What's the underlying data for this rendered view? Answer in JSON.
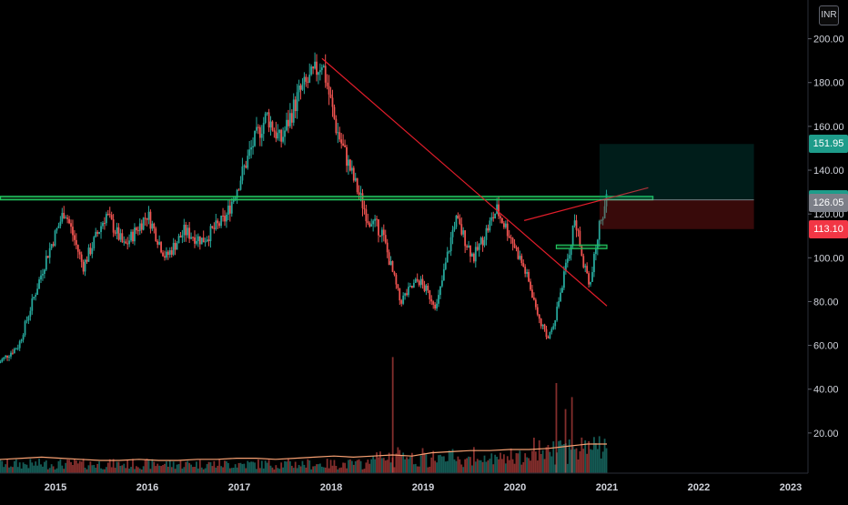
{
  "currency": "INR",
  "chart_data": {
    "type": "candlestick",
    "x_ticks": [
      "2015",
      "2016",
      "2017",
      "2018",
      "2019",
      "2020",
      "2021",
      "2022",
      "2023"
    ],
    "y_ticks": [
      "20.00",
      "40.00",
      "60.00",
      "80.00",
      "100.00",
      "120.00",
      "140.00",
      "160.00",
      "180.00",
      "200.00"
    ],
    "ylim": [
      5,
      210
    ],
    "price_labels": [
      {
        "value": "151.95",
        "price": 151.95,
        "color": "#1e9c8a",
        "role": "target"
      },
      {
        "value": "126.40",
        "price": 126.4,
        "color": "#1e9c8a",
        "role": "entry"
      },
      {
        "value": "126.05",
        "price": 126.05,
        "color": "#7c7f88",
        "role": "last"
      },
      {
        "value": "113.10",
        "price": 113.1,
        "color": "#f23645",
        "role": "stop"
      }
    ],
    "anchors": [
      {
        "date": 2014.38,
        "price": 52
      },
      {
        "date": 2014.6,
        "price": 60
      },
      {
        "date": 2014.9,
        "price": 100
      },
      {
        "date": 2015.1,
        "price": 122
      },
      {
        "date": 2015.3,
        "price": 96
      },
      {
        "date": 2015.55,
        "price": 120
      },
      {
        "date": 2015.75,
        "price": 105
      },
      {
        "date": 2016.0,
        "price": 120
      },
      {
        "date": 2016.2,
        "price": 100
      },
      {
        "date": 2016.4,
        "price": 112
      },
      {
        "date": 2016.6,
        "price": 108
      },
      {
        "date": 2016.85,
        "price": 118
      },
      {
        "date": 2017.15,
        "price": 152
      },
      {
        "date": 2017.3,
        "price": 165
      },
      {
        "date": 2017.45,
        "price": 153
      },
      {
        "date": 2017.65,
        "price": 175
      },
      {
        "date": 2017.8,
        "price": 183
      },
      {
        "date": 2017.9,
        "price": 190
      },
      {
        "date": 2018.05,
        "price": 160
      },
      {
        "date": 2018.25,
        "price": 135
      },
      {
        "date": 2018.4,
        "price": 118
      },
      {
        "date": 2018.55,
        "price": 112
      },
      {
        "date": 2018.75,
        "price": 80
      },
      {
        "date": 2018.95,
        "price": 90
      },
      {
        "date": 2019.15,
        "price": 78
      },
      {
        "date": 2019.35,
        "price": 118
      },
      {
        "date": 2019.55,
        "price": 100
      },
      {
        "date": 2019.8,
        "price": 122
      },
      {
        "date": 2019.95,
        "price": 110
      },
      {
        "date": 2020.1,
        "price": 95
      },
      {
        "date": 2020.2,
        "price": 82
      },
      {
        "date": 2020.35,
        "price": 62
      },
      {
        "date": 2020.45,
        "price": 75
      },
      {
        "date": 2020.6,
        "price": 105
      },
      {
        "date": 2020.65,
        "price": 118
      },
      {
        "date": 2020.72,
        "price": 102
      },
      {
        "date": 2020.82,
        "price": 88
      },
      {
        "date": 2020.93,
        "price": 118
      },
      {
        "date": 2021.0,
        "price": 126
      }
    ],
    "volume": {
      "ma_values": [
        4,
        5,
        6,
        7,
        8,
        7,
        6,
        5,
        5,
        6,
        5,
        5,
        6,
        6,
        7,
        7,
        6,
        7,
        8,
        9,
        8,
        9,
        10,
        9,
        12,
        13,
        14,
        14,
        15,
        15,
        16,
        18,
        20,
        20
      ],
      "spikes": [
        {
          "date": 2018.67,
          "height": 58
        },
        {
          "date": 2020.45,
          "height": 45
        },
        {
          "date": 2020.55,
          "height": 32
        },
        {
          "date": 2020.62,
          "height": 38
        }
      ]
    },
    "drawings": {
      "resistance_zone_price": [
        126.5,
        128
      ],
      "resistance_zone_dates": [
        2014.4,
        2021.5
      ],
      "small_support_price": 105,
      "small_support_dates": [
        2020.45,
        2021.0
      ],
      "downtrend_line": [
        {
          "date": 2017.9,
          "price": 191
        },
        {
          "date": 2021.0,
          "price": 78
        }
      ],
      "breakout_line": [
        {
          "date": 2020.1,
          "price": 117
        },
        {
          "date": 2021.45,
          "price": 132
        }
      ],
      "position": {
        "entry": 126.4,
        "target": 151.95,
        "stop": 113.1,
        "date_start": 2020.92,
        "date_end": 2022.6
      }
    }
  }
}
